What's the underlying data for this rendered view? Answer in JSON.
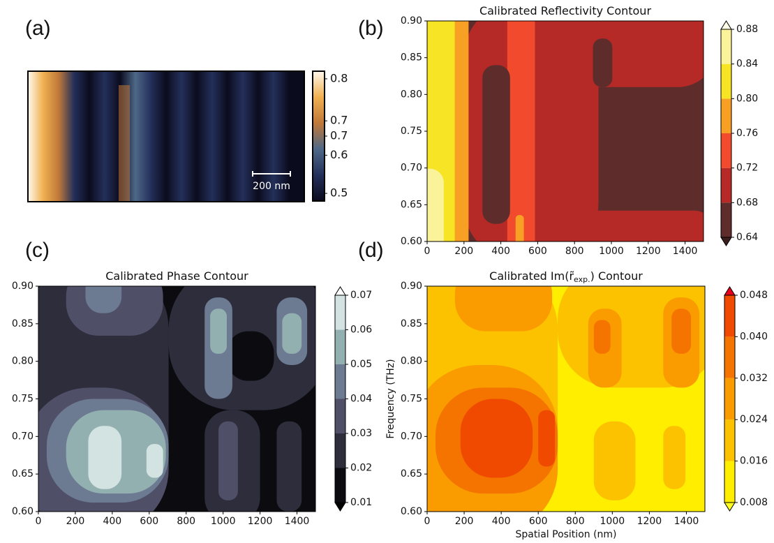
{
  "chart_data": [
    {
      "type": "heatmap",
      "panel_label": "(a)",
      "scale_bar": "200 nm",
      "colorbar": {
        "lim": [
          0.48,
          0.82
        ],
        "ticks": [
          0.8,
          {
            "value": 0.69,
            "label": "0.7"
          },
          {
            "value": 0.65,
            "label": "0.7"
          },
          0.6,
          0.5
        ],
        "colors": [
          "#0b0b1e",
          "#24305a",
          "#4e6888",
          "#c0783a",
          "#f0b050",
          "#fff8ee"
        ]
      }
    },
    {
      "type": "contour",
      "panel_label": "(b)",
      "title": "Calibrated Reflectivity Contour",
      "xlim": [
        0,
        1500
      ],
      "xticks": [
        0,
        200,
        400,
        600,
        800,
        1000,
        1200,
        1400
      ],
      "ylim": [
        0.6,
        0.9
      ],
      "yticks": [
        {
          "value": 0.6,
          "label": "0.60"
        },
        0.65,
        {
          "value": 0.7,
          "label": "0.70"
        },
        0.75,
        {
          "value": 0.8,
          "label": "0.80"
        },
        0.85,
        {
          "value": 0.9,
          "label": "0.90"
        }
      ],
      "colorbar": {
        "levels": [
          0.64,
          0.68,
          0.72,
          0.76,
          {
            "value": 0.8,
            "label": "0.80"
          },
          0.84,
          0.88
        ],
        "colors": [
          "#5e2d2b",
          "#b52a26",
          "#f24a2c",
          "#f7a024",
          "#f7e424",
          "#fbf39a"
        ],
        "under": "#3a1f1e",
        "over": "#fffde6"
      }
    },
    {
      "type": "contour",
      "panel_label": "(c)",
      "title": "Calibrated Phase Contour",
      "xlim": [
        0,
        1500
      ],
      "xticks": [
        0,
        200,
        400,
        600,
        800,
        1000,
        1200,
        1400
      ],
      "ylim": [
        0.6,
        0.9
      ],
      "yticks": [
        {
          "value": 0.6,
          "label": "0.60"
        },
        0.65,
        {
          "value": 0.7,
          "label": "0.70"
        },
        0.75,
        {
          "value": 0.8,
          "label": "0.80"
        },
        0.85,
        {
          "value": 0.9,
          "label": "0.90"
        }
      ],
      "colorbar": {
        "levels": [
          0.01,
          0.02,
          0.03,
          0.04,
          0.05,
          0.06,
          0.07
        ],
        "colors": [
          "#0b0b10",
          "#2d2d3c",
          "#4f4f68",
          "#6c7a92",
          "#93b0b0",
          "#d2e3e2"
        ],
        "under": "#000000",
        "over": "#ffffff"
      }
    },
    {
      "type": "contour",
      "panel_label": "(d)",
      "title": "Calibrated Im(r̃",
      "title_subscript": "exp.",
      "title_end": ") Contour",
      "xlabel": "Spatial Position (nm)",
      "ylabel": "Frequency (THz)",
      "xlim": [
        0,
        1500
      ],
      "xticks": [
        0,
        200,
        400,
        600,
        800,
        1000,
        1200,
        1400
      ],
      "ylim": [
        0.6,
        0.9
      ],
      "yticks": [
        {
          "value": 0.6,
          "label": "0.60"
        },
        0.65,
        {
          "value": 0.7,
          "label": "0.70"
        },
        0.75,
        {
          "value": 0.8,
          "label": "0.80"
        },
        0.85,
        {
          "value": 0.9,
          "label": "0.90"
        }
      ],
      "colorbar": {
        "levels": [
          0.008,
          0.016,
          0.024,
          0.032,
          {
            "value": 0.04,
            "label": "0.040"
          },
          0.048
        ],
        "colors": [
          "#ffee00",
          "#fcc200",
          "#fa9c00",
          "#f57400",
          "#f04a00"
        ],
        "under": "#ffff20",
        "over": "#e8001a"
      }
    }
  ]
}
